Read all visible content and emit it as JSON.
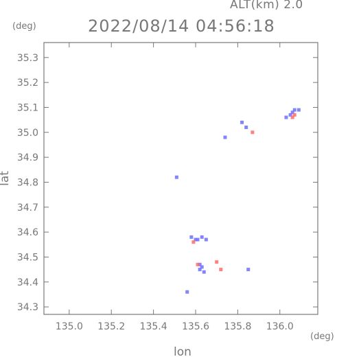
{
  "header": {
    "alt_label": "ALT(km) 2.0",
    "timestamp": "2022/08/14 04:56:18",
    "y_unit": "(deg)",
    "x_unit": "(deg)"
  },
  "colors": {
    "axis": "#777777",
    "positive": "#ff6b6b",
    "negative": "#6f6fff"
  },
  "chart_data": {
    "type": "scatter",
    "xlabel": "lon",
    "ylabel": "lat",
    "xlim": [
      134.88,
      136.18
    ],
    "ylim": [
      34.27,
      35.36
    ],
    "xticks": [
      "135.0",
      "135.2",
      "135.4",
      "135.6",
      "135.8",
      "136.0"
    ],
    "yticks": [
      "34.3",
      "34.4",
      "34.5",
      "34.6",
      "34.7",
      "34.8",
      "34.9",
      "35.0",
      "35.1",
      "35.2",
      "35.3"
    ],
    "grid": false,
    "series": [
      {
        "color": "negative",
        "points": [
          {
            "x": 136.07,
            "y": 35.09
          },
          {
            "x": 136.09,
            "y": 35.09
          },
          {
            "x": 136.05,
            "y": 35.07
          },
          {
            "x": 136.03,
            "y": 35.06
          },
          {
            "x": 136.06,
            "y": 35.08
          },
          {
            "x": 135.82,
            "y": 35.04
          },
          {
            "x": 135.84,
            "y": 35.02
          },
          {
            "x": 135.74,
            "y": 34.98
          },
          {
            "x": 135.51,
            "y": 34.82
          },
          {
            "x": 135.58,
            "y": 34.58
          },
          {
            "x": 135.6,
            "y": 34.57
          },
          {
            "x": 135.63,
            "y": 34.58
          },
          {
            "x": 135.65,
            "y": 34.57
          },
          {
            "x": 135.61,
            "y": 34.57
          },
          {
            "x": 135.62,
            "y": 34.47
          },
          {
            "x": 135.63,
            "y": 34.46
          },
          {
            "x": 135.62,
            "y": 34.45
          },
          {
            "x": 135.64,
            "y": 34.44
          },
          {
            "x": 135.85,
            "y": 34.45
          },
          {
            "x": 135.56,
            "y": 34.36
          }
        ]
      },
      {
        "color": "positive",
        "points": [
          {
            "x": 136.06,
            "y": 35.06
          },
          {
            "x": 136.07,
            "y": 35.07
          },
          {
            "x": 135.87,
            "y": 35.0
          },
          {
            "x": 135.59,
            "y": 34.56
          },
          {
            "x": 135.7,
            "y": 34.48
          },
          {
            "x": 135.72,
            "y": 34.45
          },
          {
            "x": 135.61,
            "y": 34.47
          }
        ]
      }
    ]
  }
}
